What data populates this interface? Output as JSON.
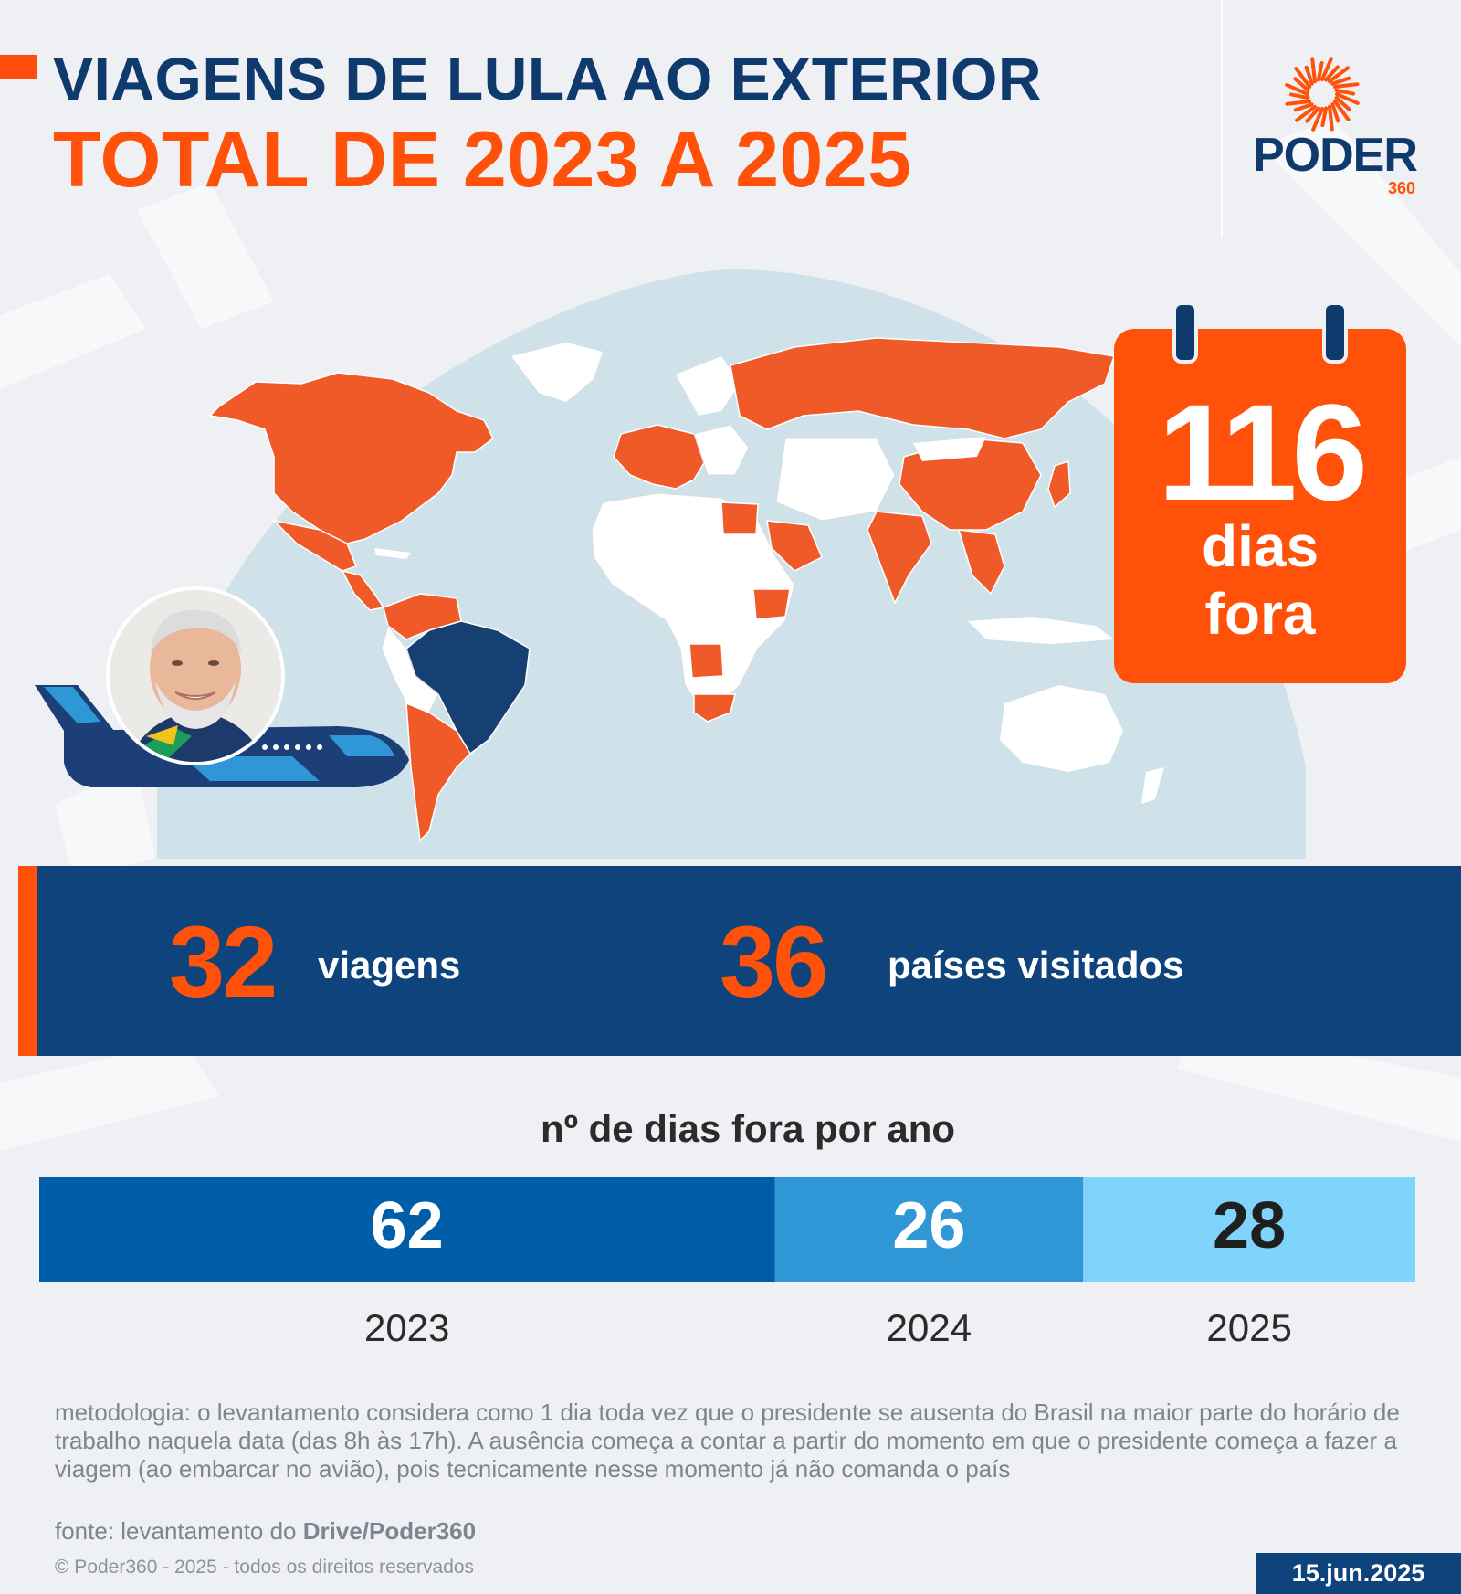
{
  "header": {
    "title_line1": "VIAGENS DE LULA AO EXTERIOR",
    "title_line2": "TOTAL DE 2023 A 2025"
  },
  "brand": {
    "name": "PODER",
    "suffix": "360",
    "logo_icon": "sunburst-icon",
    "colors": {
      "navy": "#0e3a6e",
      "orange": "#ff5109"
    }
  },
  "map": {
    "legend_colors": {
      "visited": "#f05a28",
      "home_country": "#163f72",
      "not_visited": "#ffffff",
      "ocean": "#cfe2ea"
    },
    "home_country": "Brasil"
  },
  "calendar": {
    "value": "116",
    "label_line1": "dias",
    "label_line2": "fora",
    "icon": "calendar-icon"
  },
  "illustration": {
    "plane_icon": "airplane-icon",
    "portrait_icon": "portrait-avatar"
  },
  "stats": {
    "trips_value": "32",
    "trips_label": "viagens",
    "countries_value": "36",
    "countries_label": "países visitados"
  },
  "chart_data": {
    "type": "bar",
    "orientation": "horizontal-stacked",
    "title": "nº de dias fora por ano",
    "categories": [
      "2023",
      "2024",
      "2025"
    ],
    "values": [
      62,
      26,
      28
    ],
    "total": 116,
    "colors": [
      "#005da8",
      "#2f97d6",
      "#80d4fb"
    ],
    "label_colors": [
      "#ffffff",
      "#ffffff",
      "#1f1f1f"
    ]
  },
  "notes": {
    "methodology": "metodologia: o levantamento considera como 1 dia toda vez que o presidente se ausenta do Brasil na maior parte do horário de trabalho naquela data (das 8h às 17h). A ausência começa a contar a partir do momento em que o presidente começa a fazer a viagem (ao embarcar no avião), pois tecnicamente nesse momento já não comanda o país",
    "source_prefix": "fonte: levantamento do ",
    "source_bold": "Drive/Poder360",
    "copyright": "© Poder360 - 2025 - todos os direitos reservados",
    "date": "15.jun.2025"
  }
}
